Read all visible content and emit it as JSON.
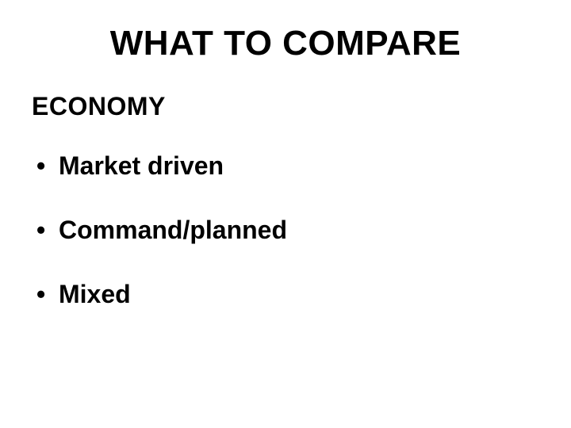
{
  "slide": {
    "title": "WHAT TO COMPARE",
    "subtitle": "ECONOMY",
    "bullets": [
      "Market driven",
      "Command/planned",
      "Mixed"
    ],
    "styling": {
      "background_color": "#ffffff",
      "text_color": "#000000",
      "title_fontsize": 44,
      "subtitle_fontsize": 32,
      "bullet_fontsize": 32,
      "font_weight": 900,
      "font_family": "Arial Black"
    }
  }
}
